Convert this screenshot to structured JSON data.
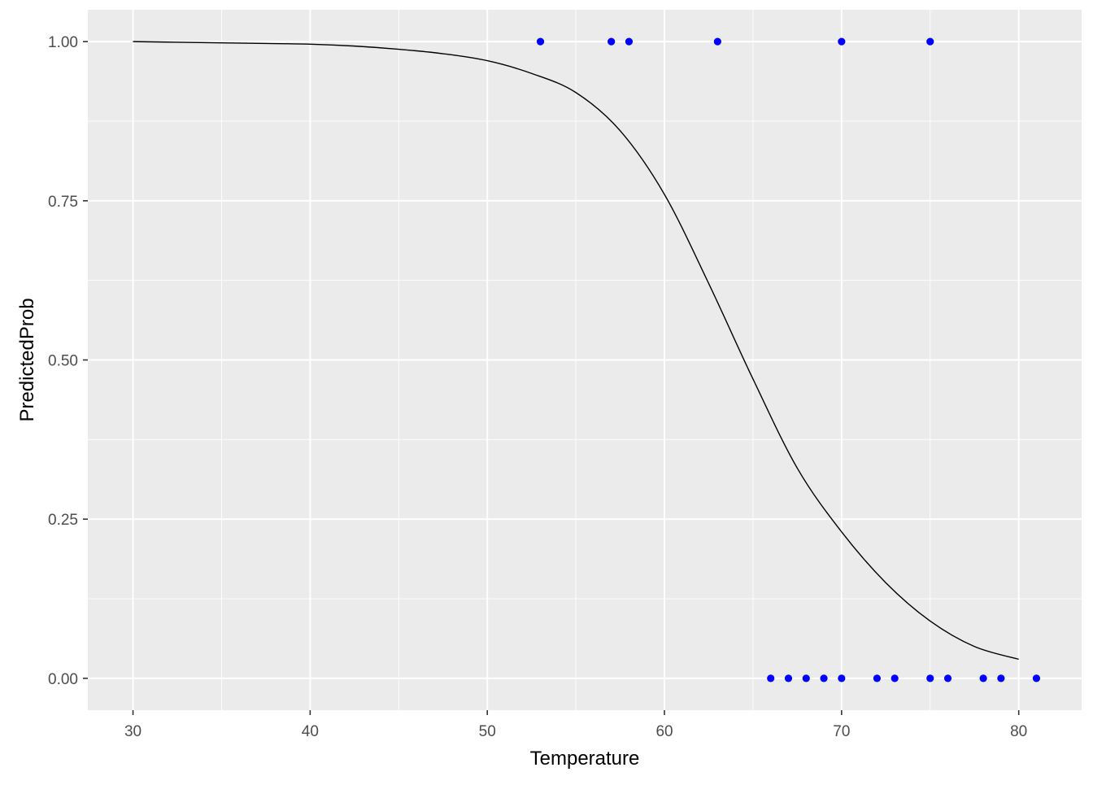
{
  "chart_data": {
    "type": "scatter",
    "xlabel": "Temperature",
    "ylabel": "PredictedProb",
    "xlim": [
      27.45,
      83.55
    ],
    "ylim": [
      -0.05,
      1.05
    ],
    "x_ticks": [
      30,
      40,
      50,
      60,
      70,
      80
    ],
    "x_tick_labels": [
      "30",
      "40",
      "50",
      "60",
      "70",
      "80"
    ],
    "y_ticks": [
      0,
      0.25,
      0.5,
      0.75,
      1
    ],
    "y_tick_labels": [
      "0.00",
      "0.25",
      "0.50",
      "0.75",
      "1.00"
    ],
    "grid": true,
    "legend": "none",
    "colors": {
      "panel_background": "#ebebeb",
      "grid": "#ffffff",
      "points": "#0000ff",
      "curve": "#000000",
      "tick_text": "#4d4d4d",
      "axis_title": "#000000"
    },
    "points": [
      {
        "x": 53,
        "y": 1
      },
      {
        "x": 57,
        "y": 1
      },
      {
        "x": 58,
        "y": 1
      },
      {
        "x": 63,
        "y": 1
      },
      {
        "x": 70,
        "y": 1
      },
      {
        "x": 75,
        "y": 1
      },
      {
        "x": 66,
        "y": 0
      },
      {
        "x": 67,
        "y": 0
      },
      {
        "x": 68,
        "y": 0
      },
      {
        "x": 69,
        "y": 0
      },
      {
        "x": 70,
        "y": 0
      },
      {
        "x": 72,
        "y": 0
      },
      {
        "x": 73,
        "y": 0
      },
      {
        "x": 75,
        "y": 0
      },
      {
        "x": 76,
        "y": 0
      },
      {
        "x": 78,
        "y": 0
      },
      {
        "x": 79,
        "y": 0
      },
      {
        "x": 81,
        "y": 0
      }
    ],
    "curve": {
      "x": [
        30,
        32.5,
        35,
        37.5,
        40,
        42.5,
        45,
        47.5,
        50,
        52.5,
        55,
        57.5,
        60,
        62.5,
        65,
        67.5,
        70,
        72.5,
        75,
        77.5,
        80
      ],
      "y": [
        1.0,
        0.999,
        0.998,
        0.997,
        0.996,
        0.993,
        0.988,
        0.981,
        0.97,
        0.95,
        0.92,
        0.86,
        0.76,
        0.62,
        0.47,
        0.33,
        0.23,
        0.15,
        0.09,
        0.05,
        0.03
      ]
    }
  }
}
